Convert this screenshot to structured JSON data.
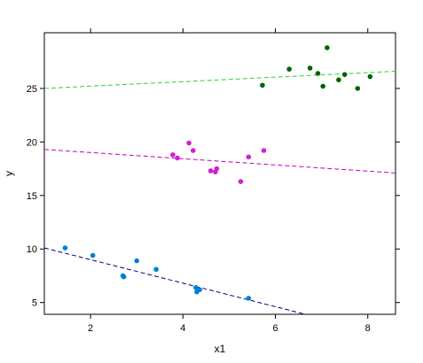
{
  "chart_data": {
    "type": "scatter",
    "title": "",
    "xlabel": "x1",
    "ylabel": "y",
    "xlim": [
      1.0,
      8.6
    ],
    "ylim": [
      3.9,
      30.2
    ],
    "x_ticks": [
      2,
      4,
      6,
      8
    ],
    "y_ticks": [
      5,
      10,
      15,
      20,
      25
    ],
    "x_tick_labels": [
      "2",
      "4",
      "6",
      "8"
    ],
    "y_tick_labels": [
      "5",
      "10",
      "15",
      "20",
      "25"
    ],
    "grid": false,
    "legend": "none",
    "series": [
      {
        "color": "#0080d0",
        "points": [
          {
            "x": 1.45,
            "y": 10.1
          },
          {
            "x": 2.05,
            "y": 9.4
          },
          {
            "x": 2.7,
            "y": 7.5
          },
          {
            "x": 2.72,
            "y": 7.4
          },
          {
            "x": 3.0,
            "y": 8.9
          },
          {
            "x": 3.42,
            "y": 8.1
          },
          {
            "x": 4.28,
            "y": 6.4
          },
          {
            "x": 4.3,
            "y": 6.0
          },
          {
            "x": 4.36,
            "y": 6.2
          },
          {
            "x": 5.42,
            "y": 5.4
          }
        ],
        "fit": {
          "x0": 1.0,
          "y0": 10.1,
          "x1": 6.65,
          "y1": 3.9,
          "color": "#000080",
          "style": "dashed"
        }
      },
      {
        "color": "#d020d0",
        "points": [
          {
            "x": 3.78,
            "y": 18.8
          },
          {
            "x": 3.88,
            "y": 18.5
          },
          {
            "x": 4.13,
            "y": 19.9
          },
          {
            "x": 4.22,
            "y": 19.2
          },
          {
            "x": 4.6,
            "y": 17.3
          },
          {
            "x": 4.7,
            "y": 17.2
          },
          {
            "x": 4.73,
            "y": 17.5
          },
          {
            "x": 5.25,
            "y": 16.3
          },
          {
            "x": 5.42,
            "y": 18.6
          },
          {
            "x": 5.75,
            "y": 19.2
          }
        ],
        "fit": {
          "x0": 1.0,
          "y0": 19.3,
          "x1": 8.6,
          "y1": 17.1,
          "color": "#c000c0",
          "style": "dashed"
        }
      },
      {
        "color": "#006400",
        "points": [
          {
            "x": 5.72,
            "y": 25.3
          },
          {
            "x": 6.3,
            "y": 26.8
          },
          {
            "x": 6.75,
            "y": 26.9
          },
          {
            "x": 6.92,
            "y": 26.4
          },
          {
            "x": 7.03,
            "y": 25.2
          },
          {
            "x": 7.12,
            "y": 28.8
          },
          {
            "x": 7.37,
            "y": 25.8
          },
          {
            "x": 7.5,
            "y": 26.3
          },
          {
            "x": 7.78,
            "y": 25.0
          },
          {
            "x": 8.05,
            "y": 26.1
          }
        ],
        "fit": {
          "x0": 1.0,
          "y0": 25.0,
          "x1": 8.6,
          "y1": 26.6,
          "color": "#30d030",
          "style": "dashed"
        }
      }
    ]
  }
}
